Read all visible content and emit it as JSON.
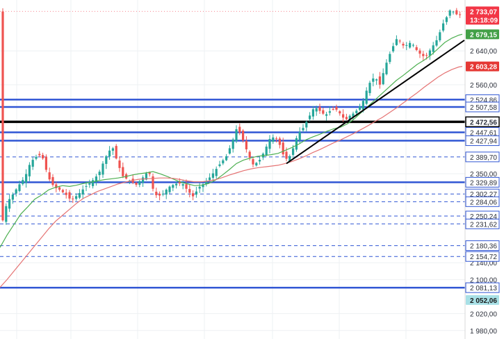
{
  "chart_data": {
    "type": "candlestick",
    "ylim": [
      1960,
      2760
    ],
    "grid": true,
    "y_ticks": [
      {
        "value": 2640,
        "label": "2 640,00"
      },
      {
        "value": 2560,
        "label": "2 560,00"
      },
      {
        "value": 2350,
        "label": "2 350,00"
      },
      {
        "value": 2140,
        "label": "2 140,00"
      },
      {
        "value": 2100,
        "label": "2 100,00"
      },
      {
        "value": 2020,
        "label": "2 020,00"
      },
      {
        "value": 1980,
        "label": "1 980,00"
      }
    ],
    "horizontal_levels": [
      {
        "value": 2524.86,
        "label": "2 524,86",
        "style": "solid",
        "color": "#2f55d4"
      },
      {
        "value": 2507.58,
        "label": "2 507,58",
        "style": "solid",
        "color": "#2f55d4"
      },
      {
        "value": 2472.56,
        "label": "2 472,56",
        "style": "solid",
        "color": "#000000"
      },
      {
        "value": 2447.61,
        "label": "2 447,61",
        "style": "solid",
        "color": "#2f55d4"
      },
      {
        "value": 2427.94,
        "label": "2 427,94",
        "style": "solid",
        "color": "#2f55d4"
      },
      {
        "value": 2389.7,
        "label": "2 389,70",
        "style": "dashed",
        "color": "#2f55d4"
      },
      {
        "value": 2329.89,
        "label": "2 329,89",
        "style": "solid",
        "color": "#2f55d4"
      },
      {
        "value": 2302.27,
        "label": "2 302,27",
        "style": "dashed",
        "color": "#2f55d4"
      },
      {
        "value": 2284.06,
        "label": "2 284,06",
        "style": "dashed",
        "color": "#2f55d4"
      },
      {
        "value": 2250.24,
        "label": "2 250,24",
        "style": "dashed",
        "color": "#2f55d4"
      },
      {
        "value": 2231.62,
        "label": "2 231,62",
        "style": "dashed",
        "color": "#2f55d4"
      },
      {
        "value": 2180.36,
        "label": "2 180,36",
        "style": "dashed",
        "color": "#2f55d4"
      },
      {
        "value": 2154.72,
        "label": "2 154,72",
        "style": "dashed",
        "color": "#2f55d4"
      },
      {
        "value": 2081.13,
        "label": "2 081,13",
        "style": "solid",
        "color": "#2f55d4"
      }
    ],
    "price_badges": [
      {
        "value": 2733.07,
        "label": "2 733,07",
        "sublabel": "13:18:09",
        "bg": "#f23645",
        "fg": "#ffffff"
      },
      {
        "value": 2679.15,
        "label": "2 679,15",
        "bg": "#43a047",
        "fg": "#ffffff"
      },
      {
        "value": 2603.28,
        "label": "2 603,28",
        "bg": "#e53935",
        "fg": "#ffffff"
      },
      {
        "value": 2052.06,
        "label": "2 052,06",
        "bg": "#a8e0e6",
        "fg": "#1b1b1b"
      }
    ],
    "moving_averages": [
      {
        "color": "#4caf50",
        "points": [
          [
            0,
            2176
          ],
          [
            10,
            2205
          ],
          [
            20,
            2230
          ],
          [
            30,
            2255
          ],
          [
            40,
            2272
          ],
          [
            50,
            2290
          ],
          [
            60,
            2300
          ],
          [
            70,
            2312
          ],
          [
            80,
            2318
          ],
          [
            90,
            2322
          ],
          [
            100,
            2320
          ],
          [
            110,
            2323
          ],
          [
            120,
            2327
          ],
          [
            130,
            2330
          ],
          [
            140,
            2333
          ],
          [
            150,
            2336
          ],
          [
            160,
            2338
          ],
          [
            170,
            2340
          ],
          [
            180,
            2343
          ],
          [
            190,
            2347
          ],
          [
            200,
            2350
          ],
          [
            210,
            2352
          ],
          [
            220,
            2355
          ],
          [
            230,
            2350
          ],
          [
            240,
            2344
          ],
          [
            250,
            2337
          ],
          [
            260,
            2330
          ],
          [
            270,
            2326
          ],
          [
            280,
            2322
          ],
          [
            290,
            2323
          ],
          [
            300,
            2327
          ],
          [
            310,
            2335
          ],
          [
            320,
            2347
          ],
          [
            330,
            2360
          ],
          [
            340,
            2374
          ],
          [
            350,
            2382
          ],
          [
            360,
            2387
          ],
          [
            370,
            2391
          ],
          [
            380,
            2393
          ],
          [
            390,
            2395
          ],
          [
            400,
            2398
          ],
          [
            410,
            2405
          ],
          [
            420,
            2412
          ],
          [
            430,
            2420
          ],
          [
            440,
            2430
          ],
          [
            450,
            2437
          ],
          [
            460,
            2443
          ],
          [
            470,
            2450
          ],
          [
            480,
            2456
          ],
          [
            490,
            2460
          ],
          [
            500,
            2468
          ],
          [
            510,
            2480
          ],
          [
            520,
            2495
          ],
          [
            530,
            2510
          ],
          [
            540,
            2525
          ],
          [
            550,
            2540
          ],
          [
            560,
            2555
          ],
          [
            570,
            2570
          ],
          [
            580,
            2582
          ],
          [
            590,
            2595
          ],
          [
            600,
            2608
          ],
          [
            610,
            2618
          ],
          [
            620,
            2630
          ],
          [
            630,
            2645
          ],
          [
            640,
            2660
          ],
          [
            650,
            2670
          ],
          [
            660,
            2677
          ],
          [
            665,
            2679.15
          ]
        ]
      },
      {
        "color": "#e57373",
        "points": [
          [
            0,
            2082
          ],
          [
            10,
            2100
          ],
          [
            20,
            2120
          ],
          [
            30,
            2140
          ],
          [
            40,
            2160
          ],
          [
            50,
            2180
          ],
          [
            60,
            2200
          ],
          [
            70,
            2220
          ],
          [
            80,
            2238
          ],
          [
            90,
            2252
          ],
          [
            100,
            2266
          ],
          [
            110,
            2280
          ],
          [
            120,
            2292
          ],
          [
            130,
            2300
          ],
          [
            140,
            2308
          ],
          [
            150,
            2314
          ],
          [
            160,
            2320
          ],
          [
            170,
            2326
          ],
          [
            180,
            2330
          ],
          [
            190,
            2334
          ],
          [
            200,
            2337
          ],
          [
            210,
            2338
          ],
          [
            220,
            2339
          ],
          [
            230,
            2340
          ],
          [
            240,
            2340
          ],
          [
            250,
            2339
          ],
          [
            260,
            2336
          ],
          [
            270,
            2333
          ],
          [
            280,
            2331
          ],
          [
            290,
            2331
          ],
          [
            300,
            2333
          ],
          [
            310,
            2336
          ],
          [
            320,
            2341
          ],
          [
            330,
            2347
          ],
          [
            340,
            2352
          ],
          [
            350,
            2357
          ],
          [
            360,
            2361
          ],
          [
            370,
            2364
          ],
          [
            380,
            2366
          ],
          [
            390,
            2368
          ],
          [
            400,
            2370
          ],
          [
            410,
            2374
          ],
          [
            420,
            2379
          ],
          [
            430,
            2385
          ],
          [
            440,
            2392
          ],
          [
            450,
            2400
          ],
          [
            460,
            2407
          ],
          [
            470,
            2415
          ],
          [
            480,
            2423
          ],
          [
            490,
            2430
          ],
          [
            500,
            2438
          ],
          [
            510,
            2446
          ],
          [
            520,
            2455
          ],
          [
            530,
            2464
          ],
          [
            540,
            2474
          ],
          [
            550,
            2483
          ],
          [
            560,
            2494
          ],
          [
            570,
            2505
          ],
          [
            580,
            2517
          ],
          [
            590,
            2529
          ],
          [
            600,
            2541
          ],
          [
            610,
            2554
          ],
          [
            620,
            2566
          ],
          [
            630,
            2578
          ],
          [
            640,
            2588
          ],
          [
            650,
            2596
          ],
          [
            660,
            2602
          ],
          [
            665,
            2603.28
          ]
        ]
      }
    ],
    "trendlines": [
      {
        "color": "#000000",
        "points": [
          [
            412,
            2374
          ],
          [
            668,
            2665
          ]
        ]
      }
    ],
    "candle_keypoints": [
      [
        4,
        2240
      ],
      [
        10,
        2282
      ],
      [
        18,
        2300
      ],
      [
        28,
        2325
      ],
      [
        36,
        2342
      ],
      [
        44,
        2378
      ],
      [
        52,
        2390
      ],
      [
        60,
        2396
      ],
      [
        64,
        2372
      ],
      [
        70,
        2340
      ],
      [
        78,
        2318
      ],
      [
        86,
        2312
      ],
      [
        94,
        2302
      ],
      [
        102,
        2288
      ],
      [
        112,
        2300
      ],
      [
        122,
        2318
      ],
      [
        132,
        2332
      ],
      [
        142,
        2350
      ],
      [
        150,
        2382
      ],
      [
        156,
        2402
      ],
      [
        162,
        2412
      ],
      [
        168,
        2382
      ],
      [
        176,
        2345
      ],
      [
        186,
        2334
      ],
      [
        196,
        2324
      ],
      [
        206,
        2342
      ],
      [
        214,
        2358
      ],
      [
        222,
        2300
      ],
      [
        232,
        2298
      ],
      [
        242,
        2318
      ],
      [
        252,
        2326
      ],
      [
        262,
        2328
      ],
      [
        270,
        2310
      ],
      [
        278,
        2296
      ],
      [
        286,
        2318
      ],
      [
        296,
        2330
      ],
      [
        306,
        2350
      ],
      [
        316,
        2372
      ],
      [
        326,
        2392
      ],
      [
        334,
        2425
      ],
      [
        340,
        2455
      ],
      [
        346,
        2445
      ],
      [
        352,
        2418
      ],
      [
        358,
        2392
      ],
      [
        364,
        2372
      ],
      [
        372,
        2378
      ],
      [
        380,
        2402
      ],
      [
        388,
        2432
      ],
      [
        396,
        2438
      ],
      [
        402,
        2420
      ],
      [
        408,
        2392
      ],
      [
        414,
        2382
      ],
      [
        420,
        2402
      ],
      [
        428,
        2442
      ],
      [
        436,
        2458
      ],
      [
        444,
        2482
      ],
      [
        450,
        2502
      ],
      [
        456,
        2505
      ],
      [
        462,
        2495
      ],
      [
        468,
        2488
      ],
      [
        474,
        2497
      ],
      [
        480,
        2503
      ],
      [
        486,
        2500
      ],
      [
        492,
        2484
      ],
      [
        498,
        2478
      ],
      [
        504,
        2488
      ],
      [
        510,
        2494
      ],
      [
        516,
        2504
      ],
      [
        522,
        2520
      ],
      [
        528,
        2550
      ],
      [
        534,
        2572
      ],
      [
        540,
        2578
      ],
      [
        546,
        2558
      ],
      [
        552,
        2592
      ],
      [
        558,
        2622
      ],
      [
        564,
        2645
      ],
      [
        570,
        2668
      ],
      [
        576,
        2662
      ],
      [
        582,
        2648
      ],
      [
        588,
        2660
      ],
      [
        594,
        2655
      ],
      [
        600,
        2640
      ],
      [
        606,
        2630
      ],
      [
        612,
        2625
      ],
      [
        618,
        2640
      ],
      [
        624,
        2655
      ],
      [
        630,
        2670
      ],
      [
        636,
        2700
      ],
      [
        642,
        2718
      ],
      [
        648,
        2738
      ],
      [
        654,
        2730
      ],
      [
        660,
        2722
      ],
      [
        666,
        2733
      ]
    ]
  }
}
